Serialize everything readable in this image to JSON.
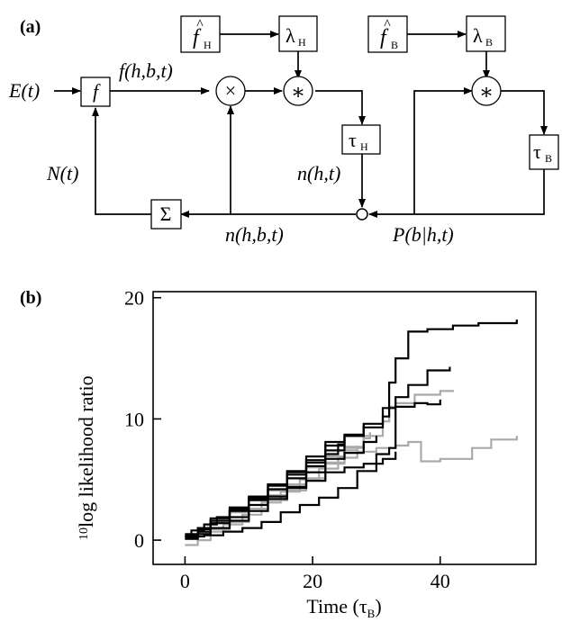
{
  "panel_a": {
    "label": "(a)",
    "input_label": "E(t)",
    "f_block": "f",
    "f_output_label": "f(h,b,t)",
    "multiply_symbol": "×",
    "convolve_symbol": "∗",
    "fhat_H": {
      "base": "f",
      "hat": "^",
      "sub": "H"
    },
    "lambda_H": {
      "base": "λ",
      "sub": "H"
    },
    "tau_H": {
      "base": "τ",
      "sub": "H"
    },
    "fhat_B": {
      "base": "f",
      "hat": "^",
      "sub": "B"
    },
    "lambda_B": {
      "base": "λ",
      "sub": "B"
    },
    "tau_B": {
      "base": "τ",
      "sub": "B"
    },
    "n_ht_label": "n(h,t)",
    "N_t_label": "N(t)",
    "sum_symbol": "Σ",
    "n_hbt_label": "n(h,b,t)",
    "P_label": "P(b|h,t)"
  },
  "panel_b": {
    "label": "(b)",
    "ylabel_sup": "10",
    "ylabel_text": "log likelihood ratio",
    "xlabel_text": "Time (",
    "xlabel_tau": "τ",
    "xlabel_sub": "B",
    "xlabel_close": ")",
    "yticks": [
      0,
      10,
      20
    ],
    "xticks": [
      0,
      20,
      40
    ]
  },
  "chart_data": {
    "type": "line",
    "title": "",
    "xlabel": "Time (τB)",
    "ylabel": "10log likelihood ratio",
    "xlim": [
      -5,
      55
    ],
    "ylim": [
      -2,
      20.5
    ],
    "grid": false,
    "legend": "none",
    "series": [
      {
        "color": "#000000",
        "x": [
          0,
          1,
          3,
          5,
          7,
          10,
          13,
          16,
          19,
          22,
          25,
          28,
          31,
          32,
          33,
          35,
          38,
          42,
          46,
          52
        ],
        "y": [
          0.3,
          0.8,
          1.3,
          1.9,
          2.7,
          3.6,
          4.5,
          5.7,
          6.9,
          8.1,
          8.6,
          9.3,
          10.2,
          13.0,
          15.0,
          17.2,
          17.4,
          17.7,
          17.9,
          18.2
        ]
      },
      {
        "color": "#000000",
        "x": [
          0,
          2,
          4,
          7,
          10,
          13,
          16,
          19,
          22,
          25,
          28,
          31,
          33,
          35,
          38,
          41.5
        ],
        "y": [
          0.4,
          0.9,
          1.8,
          2.5,
          3.4,
          4.6,
          5.6,
          6.6,
          7.8,
          8.7,
          9.6,
          10.9,
          11.8,
          12.8,
          14.0,
          14.3
        ]
      },
      {
        "color": "#000000",
        "x": [
          0,
          2,
          4,
          7,
          10,
          13,
          16,
          19,
          22,
          25,
          28,
          30
        ],
        "y": [
          0.5,
          1.0,
          1.4,
          1.9,
          2.9,
          3.6,
          4.4,
          5.6,
          6.7,
          7.2,
          8.1,
          8.6
        ]
      },
      {
        "color": "#000000",
        "x": [
          0,
          2,
          4,
          7,
          10,
          13,
          16,
          19,
          22,
          25,
          28
        ],
        "y": [
          0.2,
          0.7,
          1.6,
          2.4,
          3.3,
          4.5,
          5.4,
          6.4,
          7.4,
          8.6,
          9.5
        ]
      },
      {
        "color": "#000000",
        "x": [
          0,
          2,
          4,
          7,
          10,
          13,
          16,
          19,
          22,
          25,
          28,
          31,
          33
        ],
        "y": [
          0.1,
          0.5,
          1.0,
          1.6,
          2.4,
          3.4,
          4.3,
          4.9,
          5.6,
          6.0,
          6.3,
          6.7,
          7.3
        ]
      },
      {
        "color": "#000000",
        "x": [
          0,
          2,
          4,
          7,
          10,
          13,
          16,
          19,
          22,
          24,
          25
        ],
        "y": [
          0.4,
          0.9,
          1.6,
          2.6,
          3.5,
          4.2,
          5.1,
          6.1,
          7.1,
          7.9,
          8.4
        ]
      },
      {
        "color": "#000000",
        "x": [
          0,
          3,
          6,
          9,
          12,
          15,
          18,
          21,
          24,
          27,
          30,
          32,
          33,
          36,
          38,
          40
        ],
        "y": [
          0.3,
          0.4,
          0.7,
          1.0,
          1.5,
          2.3,
          2.9,
          3.5,
          4.3,
          5.7,
          7.1,
          7.6,
          11.0,
          11.3,
          11.2,
          11.6
        ]
      },
      {
        "color": "#aaaaaa",
        "x": [
          0,
          2,
          4,
          7,
          10,
          13,
          16,
          19,
          22,
          25,
          28,
          31,
          32,
          33,
          36,
          40,
          42
        ],
        "y": [
          0.2,
          0.6,
          1.4,
          2.3,
          3.3,
          4.1,
          5.1,
          6.0,
          6.9,
          7.7,
          8.6,
          9.8,
          11.0,
          11.3,
          12.0,
          12.3,
          12.4
        ]
      },
      {
        "color": "#aaaaaa",
        "x": [
          0,
          3,
          6,
          9,
          12,
          15,
          18,
          21,
          24,
          27,
          30,
          33,
          35,
          37,
          40,
          45,
          48,
          52
        ],
        "y": [
          0.3,
          0.7,
          1.3,
          2.1,
          3.1,
          4.0,
          5.0,
          5.9,
          6.8,
          7.3,
          7.6,
          7.8,
          8.1,
          6.5,
          6.7,
          7.6,
          8.3,
          8.6
        ]
      },
      {
        "color": "#aaaaaa",
        "x": [
          0,
          2,
          4,
          7,
          10,
          13,
          16,
          19,
          22,
          25,
          28,
          29
        ],
        "y": [
          0.1,
          0.5,
          0.9,
          1.6,
          2.6,
          3.7,
          4.6,
          5.6,
          6.4,
          7.6,
          8.4,
          8.9
        ]
      },
      {
        "color": "#aaaaaa",
        "x": [
          0,
          2,
          4,
          7,
          10,
          13,
          16,
          19,
          22,
          25,
          27
        ],
        "y": [
          -0.4,
          0.0,
          0.9,
          1.5,
          2.4,
          3.3,
          4.1,
          5.1,
          6.3,
          7.4,
          7.8
        ]
      }
    ]
  }
}
